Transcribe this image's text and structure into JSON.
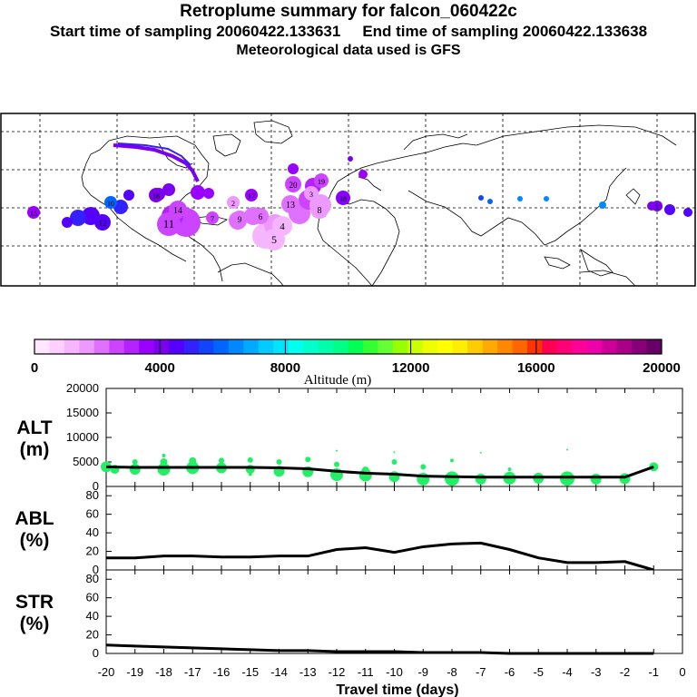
{
  "header": {
    "title": "Retroplume summary for falcon_060422c",
    "start_label": "Start time of sampling 20060422.133631",
    "end_label": "End time of sampling 20060422.133638",
    "met_label": "Meteorological data used is GFS"
  },
  "colorbar": {
    "min": 0,
    "max": 20000,
    "tick_labels": [
      "0",
      "4000",
      "8000",
      "12000",
      "16000",
      "20000"
    ],
    "label": "Altitude (m)",
    "colors": [
      "#ffe8ff",
      "#ffd0ff",
      "#f5b5ff",
      "#ee99ff",
      "#e070ff",
      "#cc44ff",
      "#b322ff",
      "#9900ff",
      "#7a00ee",
      "#5500ff",
      "#3322ff",
      "#1144ff",
      "#0066ff",
      "#0088ff",
      "#00aaff",
      "#00ccff",
      "#00e5ff",
      "#00ffee",
      "#00ffcc",
      "#00ffaa",
      "#00ff88",
      "#00ff55",
      "#33ff33",
      "#66ff33",
      "#99ff00",
      "#ccff00",
      "#eeff00",
      "#ffff00",
      "#ffee00",
      "#ffcc00",
      "#ffaa00",
      "#ff8800",
      "#ff6600",
      "#ff3300",
      "#ff0055",
      "#ff0077",
      "#ff0099",
      "#ee00aa",
      "#cc0099",
      "#aa0088",
      "#880077",
      "#660066"
    ]
  },
  "map": {
    "markers": [
      {
        "id": "20",
        "label": "20",
        "color": "#cc44ff"
      },
      {
        "id": "19",
        "label": "19",
        "color": "#cc44ff"
      },
      {
        "id": "18",
        "label": "18",
        "color": "#8800ff"
      },
      {
        "id": "17",
        "label": "17",
        "color": "#9900ff"
      },
      {
        "id": "16",
        "label": "16",
        "color": "#7a00ee"
      },
      {
        "id": "15",
        "label": "15",
        "color": "#9900ff"
      },
      {
        "id": "14",
        "label": "14",
        "color": "#cc44ff"
      },
      {
        "id": "13",
        "label": "13",
        "color": "#e070ff"
      },
      {
        "id": "12",
        "label": "12",
        "color": "#5500ff"
      },
      {
        "id": "11",
        "label": "11",
        "color": "#cc44ff"
      },
      {
        "id": "10",
        "label": "10",
        "color": "#0066ff"
      },
      {
        "id": "9",
        "label": "9",
        "color": "#e070ff"
      },
      {
        "id": "8",
        "label": "8",
        "color": "#ee99ff"
      },
      {
        "id": "7",
        "label": "7",
        "color": "#cc44ff"
      },
      {
        "id": "6",
        "label": "6",
        "color": "#e070ff"
      },
      {
        "id": "5",
        "label": "5",
        "color": "#f5b5ff"
      },
      {
        "id": "4",
        "label": "4",
        "color": "#f5b5ff"
      },
      {
        "id": "3",
        "label": "3",
        "color": "#ee99ff"
      },
      {
        "id": "2",
        "label": "2",
        "color": "#ee99ff"
      },
      {
        "id": "1",
        "label": "1",
        "color": "#7a00ee"
      }
    ]
  },
  "chart_data": [
    {
      "type": "line",
      "title": "ALT (m)",
      "ylabel_line1": "ALT",
      "ylabel_line2": "(m)",
      "ylim": [
        0,
        20000
      ],
      "ytick_labels": [
        "0",
        "5000",
        "10000",
        "15000",
        "20000"
      ],
      "xlim": [
        -20,
        0
      ],
      "series": [
        {
          "name": "mean altitude",
          "x": [
            -20,
            -19,
            -18,
            -17,
            -16,
            -15,
            -14,
            -13,
            -12,
            -11,
            -10,
            -9,
            -8,
            -7,
            -6,
            -5,
            -4,
            -3,
            -2,
            -1
          ],
          "values": [
            4000,
            3900,
            3900,
            3900,
            3900,
            3900,
            3800,
            3600,
            3100,
            2700,
            2500,
            2100,
            2000,
            1900,
            1900,
            1900,
            1900,
            1900,
            1900,
            4000
          ]
        }
      ],
      "scatter": [
        {
          "x": -20,
          "y": 4000,
          "s": 6
        },
        {
          "x": -19.7,
          "y": 3500,
          "s": 5
        },
        {
          "x": -19,
          "y": 3500,
          "s": 6
        },
        {
          "x": -19,
          "y": 5000,
          "s": 3
        },
        {
          "x": -18,
          "y": 3500,
          "s": 7
        },
        {
          "x": -18,
          "y": 5000,
          "s": 4
        },
        {
          "x": -18,
          "y": 6300,
          "s": 2
        },
        {
          "x": -17,
          "y": 3800,
          "s": 7
        },
        {
          "x": -17,
          "y": 5200,
          "s": 4
        },
        {
          "x": -16,
          "y": 3800,
          "s": 6
        },
        {
          "x": -16,
          "y": 5300,
          "s": 3
        },
        {
          "x": -15,
          "y": 3500,
          "s": 5
        },
        {
          "x": -15,
          "y": 5400,
          "s": 3
        },
        {
          "x": -15,
          "y": 2500,
          "s": 2
        },
        {
          "x": -14,
          "y": 3100,
          "s": 6
        },
        {
          "x": -14,
          "y": 5000,
          "s": 3
        },
        {
          "x": -13,
          "y": 3000,
          "s": 6
        },
        {
          "x": -13,
          "y": 5500,
          "s": 3
        },
        {
          "x": -12,
          "y": 2400,
          "s": 7
        },
        {
          "x": -12,
          "y": 4500,
          "s": 3
        },
        {
          "x": -12,
          "y": 7300,
          "s": 1
        },
        {
          "x": -11,
          "y": 2300,
          "s": 7
        },
        {
          "x": -11,
          "y": 3300,
          "s": 4
        },
        {
          "x": -10,
          "y": 2000,
          "s": 6
        },
        {
          "x": -10,
          "y": 5000,
          "s": 3
        },
        {
          "x": -10,
          "y": 7000,
          "s": 1
        },
        {
          "x": -9,
          "y": 1500,
          "s": 7
        },
        {
          "x": -9,
          "y": 4000,
          "s": 3
        },
        {
          "x": -8,
          "y": 1600,
          "s": 8
        },
        {
          "x": -8,
          "y": 5300,
          "s": 2
        },
        {
          "x": -7,
          "y": 1500,
          "s": 6
        },
        {
          "x": -7,
          "y": 6900,
          "s": 1
        },
        {
          "x": -6,
          "y": 1700,
          "s": 7
        },
        {
          "x": -6,
          "y": 3500,
          "s": 2
        },
        {
          "x": -5,
          "y": 1700,
          "s": 6
        },
        {
          "x": -4,
          "y": 1600,
          "s": 8
        },
        {
          "x": -4,
          "y": 7500,
          "s": 1
        },
        {
          "x": -3,
          "y": 1500,
          "s": 6
        },
        {
          "x": -2,
          "y": 1600,
          "s": 6
        },
        {
          "x": -1,
          "y": 4000,
          "s": 5
        }
      ]
    },
    {
      "type": "line",
      "title": "ABL (%)",
      "ylabel_line1": "ABL",
      "ylabel_line2": "(%)",
      "ylim": [
        0,
        90
      ],
      "ytick_labels": [
        "0",
        "20",
        "40",
        "60",
        "80"
      ],
      "xlim": [
        -20,
        0
      ],
      "series": [
        {
          "name": "percent in boundary layer",
          "x": [
            -20,
            -19,
            -18,
            -17,
            -16,
            -15,
            -14,
            -13,
            -12,
            -11,
            -10,
            -9,
            -8,
            -7,
            -6,
            -5,
            -4,
            -3,
            -2,
            -1
          ],
          "values": [
            13,
            13,
            15,
            15,
            14,
            14,
            15,
            15,
            22,
            24,
            19,
            25,
            28,
            29,
            22,
            13,
            8,
            8,
            9,
            0
          ]
        }
      ]
    },
    {
      "type": "line",
      "title": "STR (%)",
      "ylabel_line1": "STR",
      "ylabel_line2": "(%)",
      "ylim": [
        0,
        90
      ],
      "ytick_labels": [
        "0",
        "20",
        "40",
        "60",
        "80"
      ],
      "xlim": [
        -20,
        0
      ],
      "series": [
        {
          "name": "percent in stratosphere",
          "x": [
            -20,
            -19,
            -18,
            -17,
            -16,
            -15,
            -14,
            -13,
            -12,
            -11,
            -10,
            -9,
            -8,
            -7,
            -6,
            -5,
            -4,
            -3,
            -2,
            -1
          ],
          "values": [
            9,
            8,
            7,
            6,
            5,
            4,
            3,
            3,
            2,
            2,
            2,
            1,
            1,
            1,
            0,
            0,
            0,
            0,
            0,
            0
          ]
        }
      ]
    }
  ],
  "xaxis": {
    "label": "Travel time (days)",
    "tick_labels": [
      "-20",
      "-19",
      "-18",
      "-17",
      "-16",
      "-15",
      "-14",
      "-13",
      "-12",
      "-11",
      "-10",
      "-9",
      "-8",
      "-7",
      "-6",
      "-5",
      "-4",
      "-3",
      "-2",
      "-1",
      "0"
    ]
  }
}
